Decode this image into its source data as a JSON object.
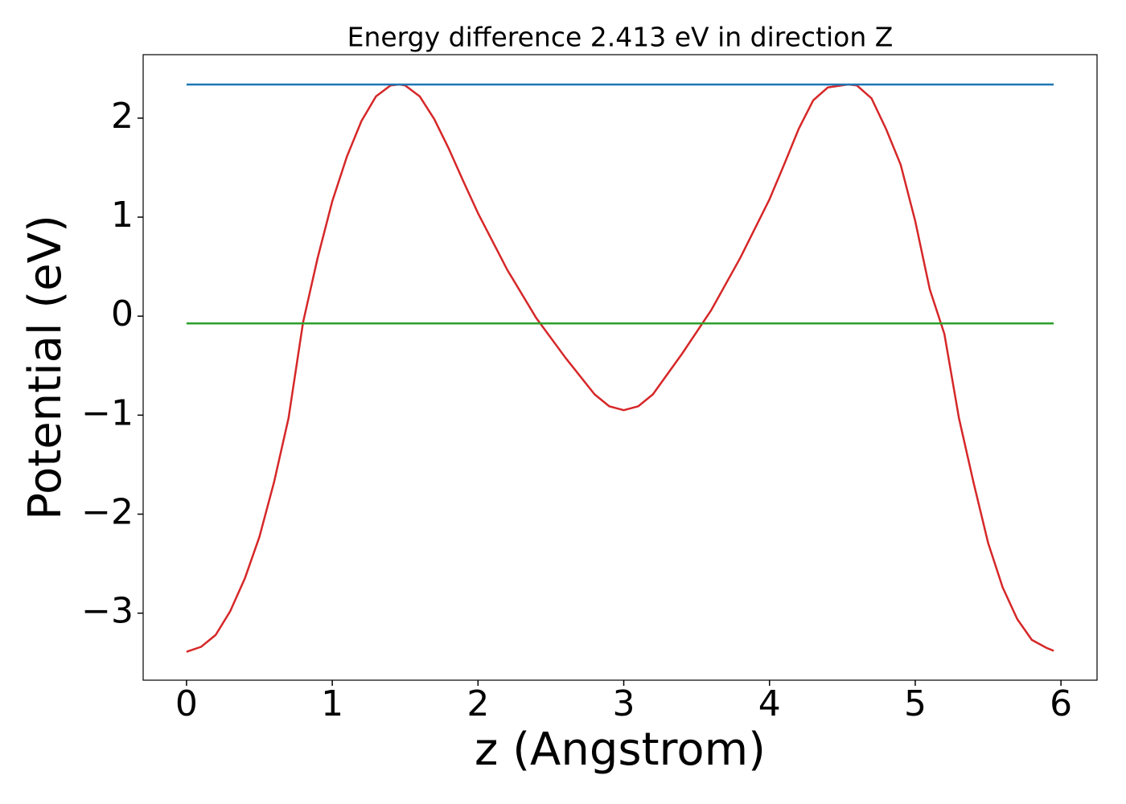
{
  "chart_data": {
    "type": "line",
    "title": "Energy difference 2.413 eV in direction Z",
    "xlabel": "z (Angstrom)",
    "ylabel": "Potential (eV)",
    "xlim": [
      -0.2975,
      6.2475
    ],
    "ylim": [
      -3.677,
      2.641
    ],
    "xticks": [
      0,
      1,
      2,
      3,
      4,
      5,
      6
    ],
    "yticks": [
      {
        "value": -3,
        "label": "−3"
      },
      {
        "value": -2,
        "label": "−2"
      },
      {
        "value": -1,
        "label": "−1"
      },
      0,
      1,
      2
    ],
    "series": [
      {
        "color": "#d62728",
        "x": [
          0,
          0.1,
          0.2,
          0.3,
          0.4,
          0.5,
          0.6,
          0.7,
          0.8,
          0.9,
          1.0,
          1.1,
          1.2,
          1.3,
          1.4,
          1.46,
          1.5,
          1.6,
          1.7,
          1.8,
          1.9,
          2.0,
          2.2,
          2.4,
          2.6,
          2.8,
          2.9,
          3.0,
          3.1,
          3.2,
          3.4,
          3.6,
          3.8,
          4.0,
          4.1,
          4.2,
          4.3,
          4.4,
          4.54,
          4.6,
          4.7,
          4.8,
          4.9,
          5.0,
          5.1,
          5.2,
          5.3,
          5.4,
          5.5,
          5.6,
          5.7,
          5.8,
          5.9,
          5.95
        ],
        "values": [
          -3.39,
          -3.34,
          -3.22,
          -2.98,
          -2.65,
          -2.23,
          -1.68,
          -1.03,
          -0.06,
          0.59,
          1.16,
          1.61,
          1.97,
          2.22,
          2.33,
          2.34,
          2.33,
          2.22,
          1.99,
          1.69,
          1.36,
          1.04,
          0.47,
          -0.02,
          -0.42,
          -0.79,
          -0.91,
          -0.95,
          -0.91,
          -0.79,
          -0.38,
          0.06,
          0.59,
          1.18,
          1.53,
          1.89,
          2.18,
          2.31,
          2.34,
          2.33,
          2.2,
          1.89,
          1.53,
          0.96,
          0.27,
          -0.18,
          -1.03,
          -1.68,
          -2.29,
          -2.74,
          -3.06,
          -3.27,
          -3.35,
          -3.38
        ]
      },
      {
        "color": "#1f77b4",
        "x": [
          0,
          5.95
        ],
        "values": [
          2.34,
          2.34
        ]
      },
      {
        "color": "#2ca02c",
        "x": [
          0,
          5.95
        ],
        "values": [
          -0.073,
          -0.073
        ]
      }
    ]
  }
}
